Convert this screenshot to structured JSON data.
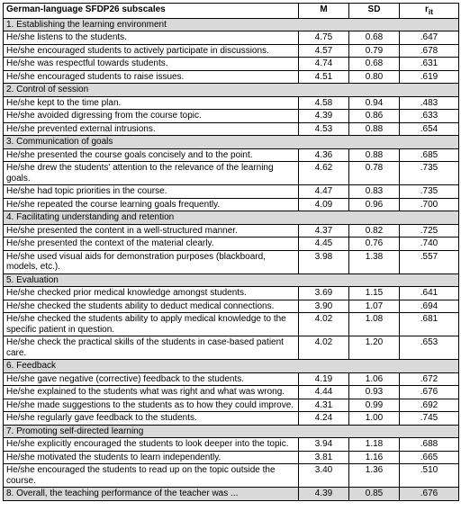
{
  "table": {
    "header": {
      "subscales": "German-language SFDP26 subscales",
      "m": "M",
      "sd": "SD",
      "rit": "r",
      "rit_sub": "it"
    },
    "background_color": "#ffffff",
    "section_bg": "#d9d9d9",
    "border_color": "#000000",
    "font_family": "Arial",
    "font_size_pt": 7.5,
    "sections": [
      {
        "title": "1. Establishing the learning environment",
        "rows": [
          {
            "label": "He/she listens to the students.",
            "m": "4.75",
            "sd": "0.68",
            "rit": ".647"
          },
          {
            "label": "He/she encouraged students to actively participate in discussions.",
            "m": "4.57",
            "sd": "0.79",
            "rit": ".678"
          },
          {
            "label": "He/she was respectful towards students.",
            "m": "4.74",
            "sd": "0.68",
            "rit": ".631"
          },
          {
            "label": "He/she encouraged students to raise issues.",
            "m": "4.51",
            "sd": "0.80",
            "rit": ".619"
          }
        ]
      },
      {
        "title": "2. Control of session",
        "rows": [
          {
            "label": "He/she kept to the time plan.",
            "m": "4.58",
            "sd": "0.94",
            "rit": ".483"
          },
          {
            "label": "He/she avoided digressing from the course topic.",
            "m": "4.39",
            "sd": "0.86",
            "rit": ".633"
          },
          {
            "label": "He/she prevented external intrusions.",
            "m": "4.53",
            "sd": "0.88",
            "rit": ".654"
          }
        ]
      },
      {
        "title": "3. Communication of goals",
        "rows": [
          {
            "label": "He/she presented the course goals concisely and to the point.",
            "m": "4.36",
            "sd": "0.88",
            "rit": ".685"
          },
          {
            "label": "He/she drew the students' attention to the relevance of the learning goals.",
            "m": "4.62",
            "sd": "0.78",
            "rit": ".735"
          },
          {
            "label": "He/she had topic priorities in the course.",
            "m": "4.47",
            "sd": "0.83",
            "rit": ".735"
          },
          {
            "label": "He/she repeated the course learning goals frequently.",
            "m": "4.09",
            "sd": "0.96",
            "rit": ".700"
          }
        ]
      },
      {
        "title": "4. Facilitating understanding and retention",
        "rows": [
          {
            "label": "He/she presented the content in a well-structured manner.",
            "m": "4.37",
            "sd": "0.82",
            "rit": ".725"
          },
          {
            "label": "He/she presented the context of the material clearly.",
            "m": "4.45",
            "sd": "0.76",
            "rit": ".740"
          },
          {
            "label": "He/she used visual aids for demonstration purposes (blackboard, models, etc.).",
            "m": "3.98",
            "sd": "1.38",
            "rit": ".557"
          }
        ]
      },
      {
        "title": "5. Evaluation",
        "rows": [
          {
            "label": "He/she checked prior medical knowledge amongst students.",
            "m": "3.69",
            "sd": "1.15",
            "rit": ".641"
          },
          {
            "label": "He/she checked the students ability to deduct medical connections.",
            "m": "3.90",
            "sd": "1.07",
            "rit": ".694"
          },
          {
            "label": "He/she checked the students ability to apply medical knowledge to the specific patient in question.",
            "m": "4.02",
            "sd": "1.08",
            "rit": ".681"
          },
          {
            "label": "He/she check the practical skills of the students in case-based patient care.",
            "m": "4.02",
            "sd": "1.20",
            "rit": ".653"
          }
        ]
      },
      {
        "title": "6. Feedback",
        "rows": [
          {
            "label": "He/she gave negative (corrective) feedback to the students.",
            "m": "4.19",
            "sd": "1.06",
            "rit": ".672"
          },
          {
            "label": "He/she explained to the students what was right and what was wrong.",
            "m": "4.44",
            "sd": "0.93",
            "rit": ".676"
          },
          {
            "label": "He/she made suggestions to the students as to how they could improve.",
            "m": "4.31",
            "sd": "0.99",
            "rit": ".692"
          },
          {
            "label": "He/she regularly gave feedback to the students.",
            "m": "4.24",
            "sd": "1.00",
            "rit": ".745"
          }
        ]
      },
      {
        "title": "7. Promoting self-directed learning",
        "rows": [
          {
            "label": "He/she explicitly encouraged the students to look deeper into the topic.",
            "m": "3.94",
            "sd": "1.18",
            "rit": ".688"
          },
          {
            "label": "He/she motivated the students to learn independently.",
            "m": "3.81",
            "sd": "1.16",
            "rit": ".665"
          },
          {
            "label": "He/she encouraged the students to read up on the topic outside the course.",
            "m": "3.40",
            "sd": "1.36",
            "rit": ".510"
          }
        ]
      },
      {
        "title": "8. Overall, the teaching performance of the teacher was ...",
        "is_summary": true,
        "m": "4.39",
        "sd": "0.85",
        "rit": ".676",
        "rows": []
      }
    ]
  }
}
